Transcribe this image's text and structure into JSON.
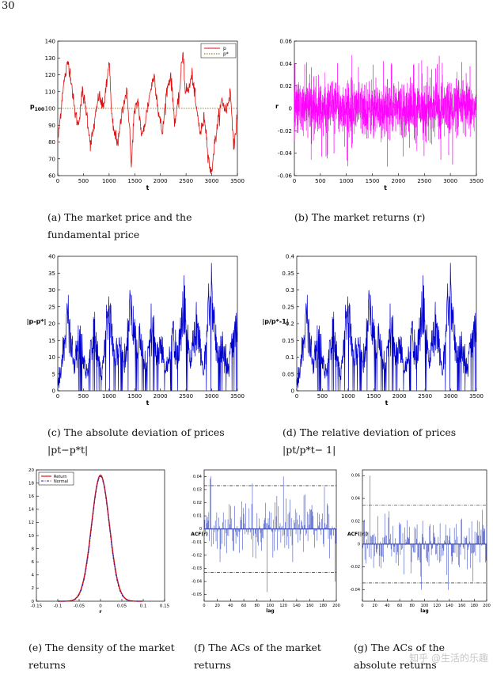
{
  "page_number": "30",
  "watermark": "知乎 @生活的乐趣",
  "colors": {
    "price": "#dd1111",
    "fundamental": "#7a5a00",
    "returns": "#ff00ff",
    "deviation": "#0000cc",
    "density_return": "#dd1111",
    "density_normal": "#2222aa",
    "acf": "#4455cc"
  },
  "captions": {
    "a": "(a)  The market price and the fundamental price",
    "b": "(b)  The market returns (r)",
    "c": "(c)  The absolute deviation of prices |pt−p*t|",
    "d": "(d)  The relative deviation of prices |pt/p*t− 1|",
    "e": "(e)  The density of the market returns",
    "f": "(f)  The ACs of the market returns",
    "g": "(g)  The ACs of the absolute returns"
  },
  "chart_data": [
    {
      "id": "a",
      "type": "line",
      "xlabel": "t",
      "ylabel": "p",
      "ylabel_sub": "100",
      "xlim": [
        0,
        3500
      ],
      "ylim": [
        60,
        140
      ],
      "xticks": [
        0,
        500,
        1000,
        1500,
        2000,
        2500,
        3000,
        3500
      ],
      "yticks": [
        60,
        70,
        80,
        90,
        100,
        110,
        120,
        130,
        140
      ],
      "legend": [
        "p",
        "p*"
      ],
      "legend_position": "top-right",
      "series": [
        {
          "name": "p",
          "x": [
            0,
            50,
            100,
            150,
            200,
            260,
            320,
            400,
            480,
            560,
            640,
            720,
            800,
            880,
            960,
            1000,
            1050,
            1100,
            1180,
            1260,
            1340,
            1400,
            1430,
            1480,
            1560,
            1640,
            1720,
            1800,
            1880,
            1960,
            2040,
            2120,
            2200,
            2280,
            2360,
            2440,
            2480,
            2540,
            2620,
            2700,
            2780,
            2860,
            2940,
            2990,
            3040,
            3120,
            3200,
            3280,
            3360,
            3440,
            3500
          ],
          "y": [
            80,
            95,
            112,
            120,
            128,
            118,
            100,
            90,
            110,
            98,
            78,
            92,
            108,
            100,
            115,
            130,
            95,
            85,
            80,
            100,
            110,
            90,
            63,
            95,
            105,
            82,
            95,
            110,
            120,
            98,
            85,
            110,
            120,
            92,
            105,
            135,
            112,
            110,
            120,
            100,
            85,
            95,
            70,
            60,
            75,
            92,
            105,
            98,
            110,
            75,
            100
          ]
        },
        {
          "name": "p*",
          "x": [
            0,
            3500
          ],
          "y": [
            100,
            100
          ]
        }
      ]
    },
    {
      "id": "b",
      "type": "line",
      "xlabel": "t",
      "ylabel": "r",
      "xlim": [
        0,
        3500
      ],
      "ylim": [
        -0.06,
        0.06
      ],
      "xticks": [
        0,
        500,
        1000,
        1500,
        2000,
        2500,
        3000,
        3500
      ],
      "yticks": [
        -0.06,
        -0.04,
        -0.02,
        0,
        0.02,
        0.04,
        0.06
      ],
      "series": [
        {
          "name": "r",
          "noise_std": 0.012,
          "spike_max": 0.052,
          "n": 3500
        }
      ]
    },
    {
      "id": "c",
      "type": "line",
      "xlabel": "t",
      "ylabel": "|p-p*|",
      "xlim": [
        0,
        3500
      ],
      "ylim": [
        0,
        40
      ],
      "xticks": [
        0,
        500,
        1000,
        1500,
        2000,
        2500,
        3000,
        3500
      ],
      "yticks": [
        0,
        5,
        10,
        15,
        20,
        25,
        30,
        35,
        40
      ],
      "series": [
        {
          "name": "|p-p*|",
          "peaks_x": [
            200,
            420,
            700,
            1000,
            1200,
            1430,
            1600,
            1850,
            2000,
            2250,
            2450,
            2700,
            2990,
            3200,
            3450
          ],
          "peaks_y": [
            27,
            20,
            22,
            30,
            18,
            36,
            20,
            25,
            18,
            21,
            35,
            25,
            40,
            15,
            25
          ]
        }
      ]
    },
    {
      "id": "d",
      "type": "line",
      "xlabel": "t",
      "ylabel": "|p/p*-1|",
      "xlim": [
        0,
        3500
      ],
      "ylim": [
        0,
        0.4
      ],
      "xticks": [
        0,
        500,
        1000,
        1500,
        2000,
        2500,
        3000,
        3500
      ],
      "yticks": [
        0,
        0.05,
        0.1,
        0.15,
        0.2,
        0.25,
        0.3,
        0.35,
        0.4
      ],
      "series": [
        {
          "name": "|p/p*-1|",
          "peaks_x": [
            200,
            420,
            700,
            1000,
            1200,
            1430,
            1600,
            1850,
            2000,
            2250,
            2450,
            2700,
            2990,
            3200,
            3450
          ],
          "peaks_y": [
            0.27,
            0.2,
            0.22,
            0.3,
            0.18,
            0.36,
            0.2,
            0.25,
            0.18,
            0.21,
            0.35,
            0.25,
            0.4,
            0.15,
            0.25
          ]
        }
      ]
    },
    {
      "id": "e",
      "type": "line",
      "xlabel": "r",
      "ylabel": "",
      "xlim": [
        -0.15,
        0.15
      ],
      "ylim": [
        0,
        20
      ],
      "xticks": [
        -0.15,
        -0.1,
        -0.05,
        0,
        0.05,
        0.1,
        0.15
      ],
      "yticks": [
        0,
        2,
        4,
        6,
        8,
        10,
        12,
        14,
        16,
        18,
        20
      ],
      "legend": [
        "Return",
        "Normal"
      ],
      "legend_position": "top-left",
      "series": [
        {
          "name": "Return",
          "mean": 0,
          "std": 0.021,
          "peak": 19.2
        },
        {
          "name": "Normal",
          "mean": 0,
          "std": 0.0205,
          "peak": 19.0
        }
      ]
    },
    {
      "id": "f",
      "type": "bar",
      "xlabel": "lag",
      "ylabel": "ACF(r)",
      "xlim": [
        0,
        200
      ],
      "ylim": [
        -0.055,
        0.045
      ],
      "xticks": [
        0,
        20,
        40,
        60,
        80,
        100,
        120,
        140,
        160,
        180,
        200
      ],
      "yticks": [
        -0.05,
        -0.04,
        -0.03,
        -0.02,
        -0.01,
        0,
        0.01,
        0.02,
        0.03,
        0.04
      ],
      "conf_band": [
        -0.033,
        0.033
      ],
      "series": [
        {
          "name": "ACF(r)",
          "amp": 0.02,
          "spikes_x": [
            10,
            95,
            120,
            198
          ],
          "spikes_y": [
            0.04,
            -0.048,
            0.04,
            -0.04
          ]
        }
      ]
    },
    {
      "id": "g",
      "type": "bar",
      "xlabel": "lag",
      "ylabel": "ACF(|r|)",
      "xlim": [
        0,
        200
      ],
      "ylim": [
        -0.05,
        0.065
      ],
      "xticks": [
        0,
        20,
        40,
        60,
        80,
        100,
        120,
        140,
        160,
        180,
        200
      ],
      "yticks": [
        -0.04,
        -0.02,
        0,
        0.02,
        0.04,
        0.06
      ],
      "conf_band": [
        -0.034,
        0.034
      ],
      "series": [
        {
          "name": "ACF(|r|)",
          "amp": 0.022,
          "spikes_x": [
            12,
            95,
            138
          ],
          "spikes_y": [
            0.06,
            -0.04,
            -0.04
          ]
        }
      ]
    }
  ]
}
